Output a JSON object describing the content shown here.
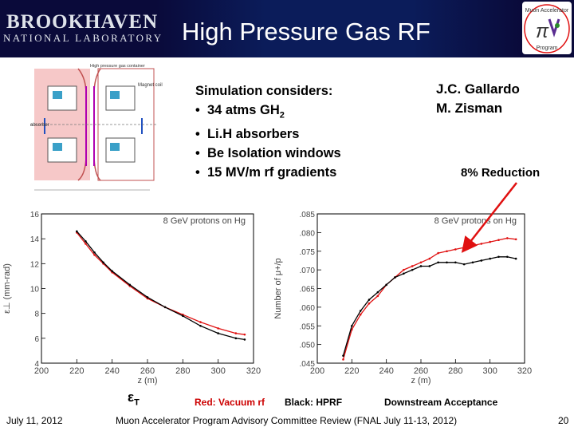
{
  "header": {
    "logo_main": "BROOKHAVEN",
    "logo_sub": "NATIONAL LABORATORY",
    "title": "High Pressure Gas RF",
    "seal_texts": [
      "Muon Accelerator",
      "Program"
    ]
  },
  "diagram": {
    "labels": [
      "absorber",
      "Magnet coil",
      "High pressure gas container"
    ]
  },
  "bullets": {
    "heading": "Simulation considers:",
    "items": [
      {
        "text": "34 atms GH",
        "sub": "2"
      },
      {
        "text": "Li.H absorbers",
        "sub": ""
      },
      {
        "text": "Be Isolation windows",
        "sub": ""
      },
      {
        "text": "15 MV/m rf gradients",
        "sub": ""
      }
    ],
    "bullet_char": "•"
  },
  "authors": [
    "J.C. Gallardo",
    "M. Zisman"
  ],
  "annotation": "8% Reduction",
  "colors": {
    "red_series": "#e01010",
    "black_series": "#000000",
    "arrow": "#e01010",
    "caption_red": "#cc0000"
  },
  "chart_data": [
    {
      "type": "line",
      "title": "8 GeV protons on Hg",
      "xlabel": "z (m)",
      "ylabel": "ε⊥ (mm-rad)",
      "xlim": [
        200,
        320
      ],
      "ylim": [
        4,
        16
      ],
      "xticks": [
        200,
        220,
        240,
        260,
        280,
        300,
        320
      ],
      "yticks": [
        4,
        6,
        8,
        10,
        12,
        14,
        16
      ],
      "series": [
        {
          "name": "Red: Vacuum rf",
          "color": "#e01010",
          "x": [
            220,
            225,
            230,
            235,
            240,
            250,
            260,
            270,
            280,
            290,
            300,
            310,
            315
          ],
          "y": [
            14.5,
            13.6,
            12.7,
            12.0,
            11.3,
            10.2,
            9.2,
            8.5,
            7.9,
            7.3,
            6.8,
            6.4,
            6.3
          ]
        },
        {
          "name": "Black: HPRF",
          "color": "#000000",
          "x": [
            220,
            225,
            230,
            235,
            240,
            250,
            260,
            270,
            280,
            290,
            300,
            310,
            315
          ],
          "y": [
            14.6,
            13.8,
            12.9,
            12.1,
            11.4,
            10.3,
            9.3,
            8.5,
            7.8,
            7.0,
            6.4,
            6.0,
            5.9
          ]
        }
      ]
    },
    {
      "type": "line",
      "title": "8 GeV protons on Hg",
      "xlabel": "z (m)",
      "ylabel": "Number of μ+/p",
      "xlim": [
        200,
        320
      ],
      "ylim": [
        0.045,
        0.085
      ],
      "xticks": [
        200,
        220,
        240,
        260,
        280,
        300,
        320
      ],
      "yticks": [
        0.045,
        0.05,
        0.055,
        0.06,
        0.065,
        0.07,
        0.075,
        0.08,
        0.085
      ],
      "ytick_labels": [
        ".045",
        ".050",
        ".055",
        ".060",
        ".065",
        ".070",
        ".075",
        ".080",
        ".085"
      ],
      "series": [
        {
          "name": "Red: Vacuum rf",
          "color": "#e01010",
          "x": [
            215,
            220,
            225,
            230,
            235,
            240,
            245,
            250,
            255,
            260,
            265,
            270,
            275,
            280,
            285,
            290,
            295,
            300,
            305,
            310,
            315
          ],
          "y": [
            0.046,
            0.054,
            0.058,
            0.061,
            0.063,
            0.066,
            0.068,
            0.07,
            0.071,
            0.072,
            0.073,
            0.0745,
            0.075,
            0.0755,
            0.076,
            0.0765,
            0.077,
            0.0775,
            0.078,
            0.0785,
            0.0782
          ]
        },
        {
          "name": "Black: HPRF",
          "color": "#000000",
          "x": [
            215,
            220,
            225,
            230,
            235,
            240,
            245,
            250,
            255,
            260,
            265,
            270,
            275,
            280,
            285,
            290,
            295,
            300,
            305,
            310,
            315
          ],
          "y": [
            0.047,
            0.055,
            0.059,
            0.062,
            0.064,
            0.066,
            0.068,
            0.069,
            0.07,
            0.071,
            0.071,
            0.072,
            0.072,
            0.072,
            0.0715,
            0.072,
            0.0725,
            0.073,
            0.0735,
            0.0735,
            0.073
          ]
        }
      ]
    }
  ],
  "captions": {
    "emittance_symbol": "ε",
    "emittance_sub": "T",
    "red_label": "Red: Vacuum rf",
    "black_label": "Black: HPRF",
    "acceptance": "Downstream Acceptance"
  },
  "footer": {
    "date": "July 11, 2012",
    "center": "Muon Accelerator Program Advisory Committee Review (FNAL July 11-13, 2012)",
    "page": "20"
  }
}
